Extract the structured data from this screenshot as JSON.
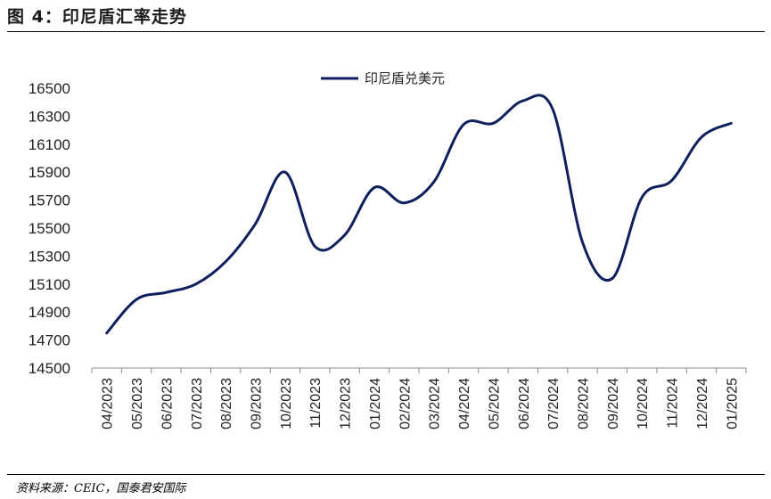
{
  "figure": {
    "title": "图 4：印尼盾汇率走势",
    "source": "资料来源：CEIC，国泰君安国际"
  },
  "chart_data": {
    "type": "line",
    "title": "",
    "xlabel": "",
    "ylabel": "",
    "categories": [
      "04/2023",
      "05/2023",
      "06/2023",
      "07/2023",
      "08/2023",
      "09/2023",
      "10/2023",
      "11/2023",
      "12/2023",
      "01/2024",
      "02/2024",
      "03/2024",
      "04/2024",
      "05/2024",
      "06/2024",
      "07/2024",
      "08/2024",
      "09/2024",
      "10/2024",
      "11/2024",
      "12/2024",
      "01/2025"
    ],
    "series": [
      {
        "name": "印尼盾兑美元",
        "color": "#0d1f5c",
        "values": [
          14750,
          14990,
          15040,
          15100,
          15260,
          15530,
          15900,
          15370,
          15450,
          15790,
          15680,
          15830,
          16240,
          16250,
          16410,
          16350,
          15400,
          15140,
          15720,
          15840,
          16150,
          16250
        ]
      }
    ],
    "ylim": [
      14500,
      16500
    ],
    "yticks": [
      14500,
      14700,
      14900,
      15100,
      15300,
      15500,
      15700,
      15900,
      16100,
      16300,
      16500
    ],
    "grid": false,
    "legend_position": "top-center"
  }
}
